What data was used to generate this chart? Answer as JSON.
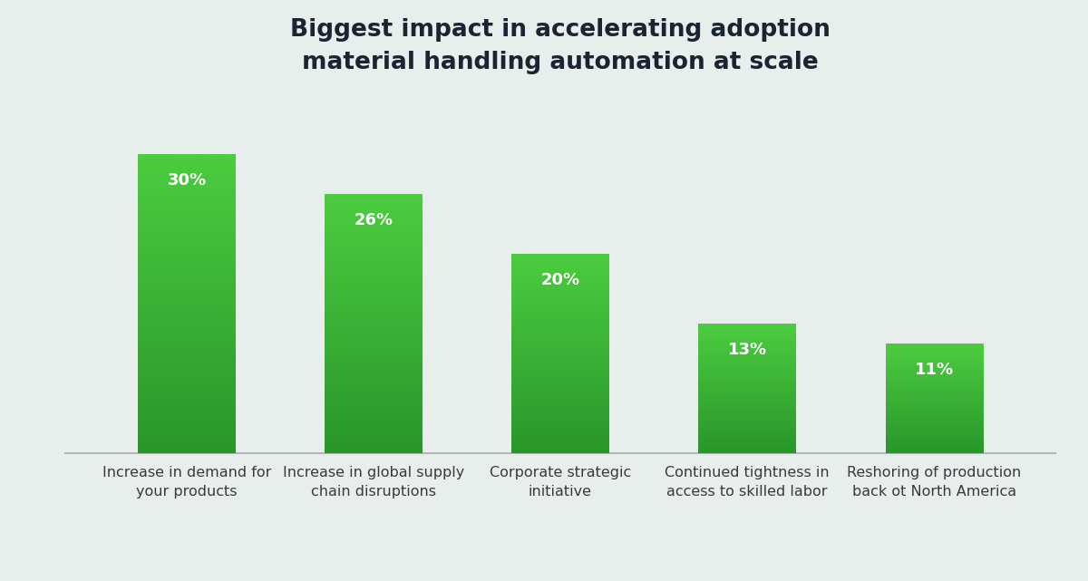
{
  "title": "Biggest impact in accelerating adoption\nmaterial handling automation at scale",
  "categories": [
    "Increase in demand for\nyour products",
    "Increase in global supply\nchain disruptions",
    "Corporate strategic\ninitiative",
    "Continued tightness in\naccess to skilled labor",
    "Reshoring of production\nback ot North America"
  ],
  "values": [
    30,
    26,
    20,
    13,
    11
  ],
  "labels": [
    "30%",
    "26%",
    "20%",
    "13%",
    "11%"
  ],
  "bar_color_top": "#4ccc40",
  "bar_color_bottom": "#2a962a",
  "background_color": "#e8eeec",
  "title_color": "#1a2433",
  "label_color": "#ffffff",
  "axis_line_color": "#b0b8b4",
  "title_fontsize": 19,
  "label_fontsize": 13,
  "tick_fontsize": 11.5,
  "ylim": [
    0,
    35
  ],
  "bar_width": 0.52
}
